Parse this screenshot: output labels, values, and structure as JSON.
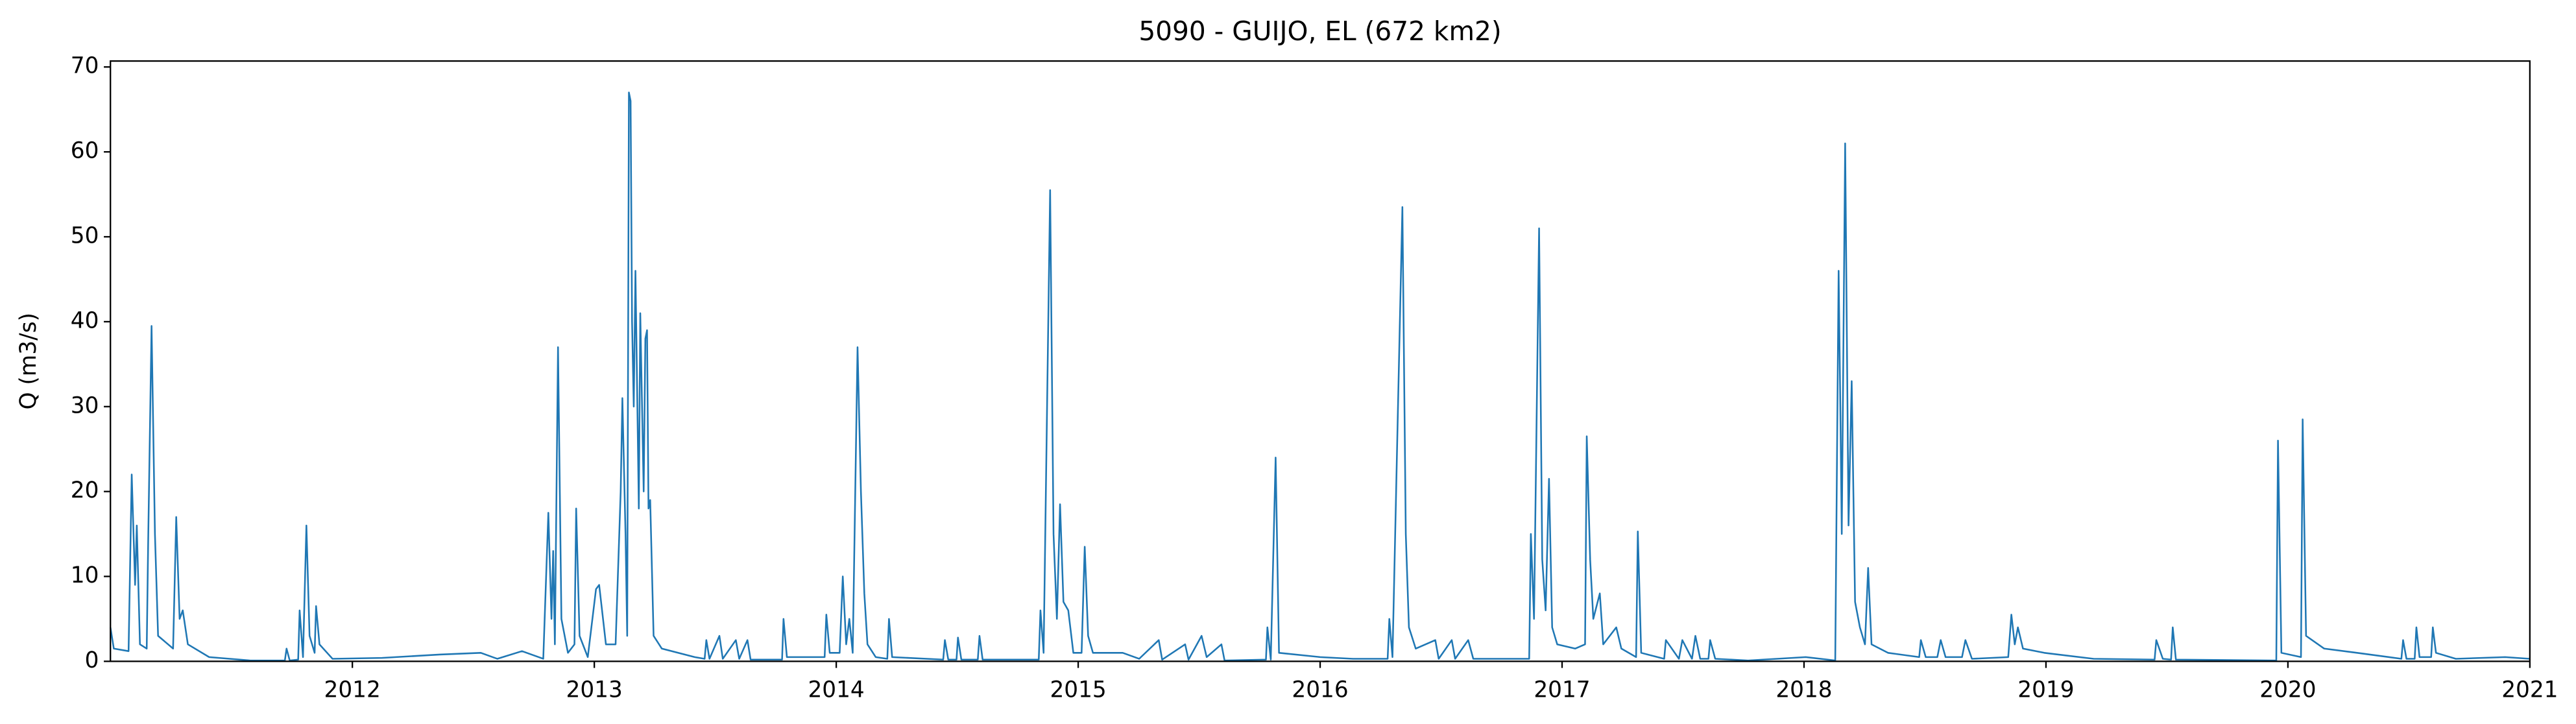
{
  "chart_data": {
    "type": "line",
    "title": "5090 - GUIJO, EL (672 km2)",
    "y_label": "Q (m3/s)",
    "xlim": [
      2011,
      2021
    ],
    "ylim": [
      0,
      70.7
    ],
    "xticks": [
      2012,
      2013,
      2014,
      2015,
      2016,
      2017,
      2018,
      2019,
      2020,
      2021
    ],
    "yticks": [
      0,
      10,
      20,
      30,
      40,
      50,
      60,
      70
    ],
    "grid": false,
    "x": [
      2011.0,
      2011.014,
      2011.075,
      2011.088,
      2011.102,
      2011.109,
      2011.122,
      2011.15,
      2011.156,
      2011.17,
      2011.184,
      2011.197,
      2011.259,
      2011.272,
      2011.286,
      2011.299,
      2011.32,
      2011.408,
      2011.578,
      2011.721,
      2011.728,
      2011.741,
      2011.776,
      2011.782,
      2011.796,
      2011.81,
      2011.823,
      2011.844,
      2011.85,
      2011.864,
      2011.918,
      2012.122,
      2012.361,
      2012.531,
      2012.599,
      2012.701,
      2012.789,
      2012.81,
      2012.823,
      2012.83,
      2012.837,
      2012.85,
      2012.864,
      2012.891,
      2012.918,
      2012.925,
      2012.939,
      2012.973,
      2013.007,
      2013.02,
      2013.048,
      2013.088,
      2013.109,
      2013.116,
      2013.129,
      2013.136,
      2013.143,
      2013.15,
      2013.156,
      2013.163,
      2013.17,
      2013.184,
      2013.19,
      2013.204,
      2013.211,
      2013.218,
      2013.224,
      2013.231,
      2013.245,
      2013.279,
      2013.415,
      2013.456,
      2013.463,
      2013.476,
      2013.517,
      2013.531,
      2013.585,
      2013.599,
      2013.633,
      2013.646,
      2013.776,
      2013.782,
      2013.796,
      2013.952,
      2013.959,
      2013.973,
      2014.014,
      2014.027,
      2014.041,
      2014.054,
      2014.068,
      2014.088,
      2014.102,
      2014.116,
      2014.129,
      2014.163,
      2014.211,
      2014.218,
      2014.231,
      2014.442,
      2014.449,
      2014.463,
      2014.497,
      2014.503,
      2014.517,
      2014.585,
      2014.592,
      2014.605,
      2014.837,
      2014.844,
      2014.857,
      2014.884,
      2014.898,
      2014.912,
      2014.925,
      2014.939,
      2014.959,
      2014.98,
      2015.014,
      2015.027,
      2015.041,
      2015.061,
      2015.184,
      2015.252,
      2015.333,
      2015.347,
      2015.442,
      2015.456,
      2015.51,
      2015.531,
      2015.592,
      2015.605,
      2015.776,
      2015.782,
      2015.796,
      2015.816,
      2015.83,
      2016.0,
      2016.136,
      2016.279,
      2016.286,
      2016.299,
      2016.34,
      2016.354,
      2016.367,
      2016.395,
      2016.476,
      2016.49,
      2016.544,
      2016.558,
      2016.612,
      2016.633,
      2016.864,
      2016.871,
      2016.884,
      2016.905,
      2016.918,
      2016.932,
      2016.946,
      2016.959,
      2016.98,
      2017.054,
      2017.095,
      2017.102,
      2017.116,
      2017.129,
      2017.156,
      2017.17,
      2017.224,
      2017.245,
      2017.306,
      2017.313,
      2017.327,
      2017.422,
      2017.429,
      2017.483,
      2017.497,
      2017.537,
      2017.551,
      2017.571,
      2017.605,
      2017.612,
      2017.633,
      2017.769,
      2018.007,
      2018.129,
      2018.143,
      2018.15,
      2018.156,
      2018.17,
      2018.184,
      2018.197,
      2018.211,
      2018.231,
      2018.252,
      2018.265,
      2018.279,
      2018.347,
      2018.476,
      2018.483,
      2018.503,
      2018.551,
      2018.565,
      2018.585,
      2018.653,
      2018.667,
      2018.694,
      2018.844,
      2018.857,
      2018.871,
      2018.884,
      2018.905,
      2018.993,
      2019.197,
      2019.449,
      2019.456,
      2019.483,
      2019.517,
      2019.524,
      2019.537,
      2019.952,
      2019.959,
      2019.973,
      2020.054,
      2020.061,
      2020.075,
      2020.15,
      2020.286,
      2020.469,
      2020.476,
      2020.49,
      2020.524,
      2020.531,
      2020.544,
      2020.592,
      2020.599,
      2020.612,
      2020.694,
      2020.898,
      2021.0
    ],
    "series": [
      {
        "color": "#1f77b4",
        "values": [
          4,
          1.5,
          1.2,
          22,
          9,
          16,
          2,
          1.5,
          14,
          39.5,
          15,
          3,
          1.5,
          17,
          5,
          6,
          2,
          0.5,
          0.1,
          0.1,
          1.5,
          0.1,
          0.2,
          6,
          0.5,
          16,
          3,
          1,
          6.5,
          2,
          0.3,
          0.4,
          0.8,
          1,
          0.3,
          1.2,
          0.3,
          17.5,
          5,
          13,
          2,
          37,
          5,
          1,
          2,
          18,
          3,
          0.5,
          8.5,
          9,
          2,
          2,
          20,
          31,
          15,
          3,
          67,
          66,
          40,
          30,
          46,
          18,
          41,
          20,
          38,
          39,
          18,
          19,
          3,
          1.5,
          0.5,
          0.3,
          2.5,
          0.3,
          3,
          0.3,
          2.5,
          0.3,
          2.5,
          0.2,
          0.2,
          5,
          0.5,
          0.5,
          5.5,
          1,
          1,
          10,
          2,
          5,
          1,
          37,
          20,
          8,
          2,
          0.5,
          0.3,
          5,
          0.5,
          0.2,
          2.5,
          0.2,
          0.2,
          2.8,
          0.2,
          0.2,
          3,
          0.2,
          0.2,
          6,
          1,
          55.5,
          15,
          5,
          18.5,
          7,
          6,
          1,
          1,
          13.5,
          3,
          1,
          1,
          0.3,
          2.5,
          0.2,
          2,
          0.2,
          3,
          0.5,
          2,
          0.1,
          0.2,
          4,
          0.2,
          24,
          1,
          0.5,
          0.3,
          0.3,
          5,
          0.5,
          53.5,
          15,
          4,
          1.5,
          2.5,
          0.3,
          2.5,
          0.3,
          2.5,
          0.3,
          0.3,
          15,
          5,
          51,
          12,
          6,
          21.5,
          4,
          2,
          1.5,
          2,
          26.5,
          12,
          5,
          8,
          2,
          4,
          1.5,
          0.5,
          15.3,
          1,
          0.3,
          2.5,
          0.3,
          2.5,
          0.3,
          3,
          0.3,
          0.3,
          2.5,
          0.3,
          0.1,
          0.5,
          0.1,
          46,
          30,
          15,
          61,
          16,
          33,
          7,
          4,
          2,
          11,
          2,
          1,
          0.5,
          2.5,
          0.5,
          0.5,
          2.5,
          0.5,
          0.5,
          2.5,
          0.3,
          0.5,
          5.5,
          2,
          4,
          1.5,
          1,
          0.3,
          0.2,
          2.5,
          0.3,
          0.2,
          4,
          0.2,
          0.1,
          26,
          1,
          0.5,
          28.5,
          3,
          1.5,
          1,
          0.3,
          2.5,
          0.3,
          0.3,
          4,
          0.5,
          0.5,
          4,
          1,
          0.3,
          0.5,
          0.3
        ]
      }
    ]
  }
}
